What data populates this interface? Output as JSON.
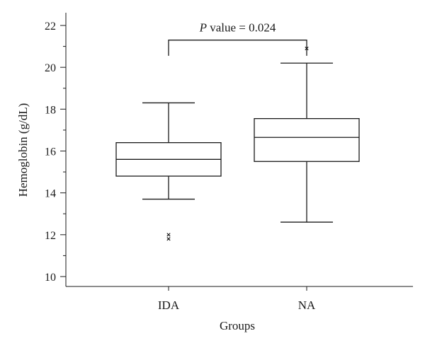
{
  "chart_data": {
    "type": "boxplot",
    "xlabel": "Groups",
    "ylabel": "Hemoglobin (g/dL)",
    "ylim": [
      9.5,
      23
    ],
    "yticks": [
      10,
      12,
      14,
      16,
      18,
      20,
      22
    ],
    "categories": [
      "IDA",
      "NA"
    ],
    "boxes": [
      {
        "category": "IDA",
        "whisker_low": 13.7,
        "q1": 14.8,
        "median": 15.6,
        "q3": 16.4,
        "whisker_high": 18.3,
        "outliers": [
          11.8,
          12.0
        ]
      },
      {
        "category": "NA",
        "whisker_low": 12.6,
        "q1": 15.5,
        "median": 16.65,
        "q3": 17.55,
        "whisker_high": 20.2,
        "outliers": [
          20.9
        ]
      }
    ],
    "annotation": {
      "italic": "P",
      "text": "value  = 0.024",
      "bracket_y": 21.3,
      "bracket_bottom": 20.55
    }
  }
}
